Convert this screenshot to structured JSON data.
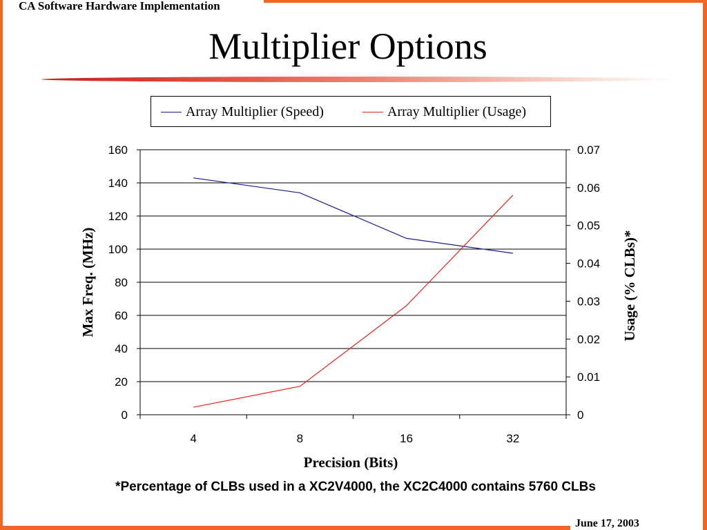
{
  "header": {
    "text": "CA Software Hardware Implementation"
  },
  "slide": {
    "title": "Multiplier Options"
  },
  "footer": {
    "date": "June 17, 2003"
  },
  "footnote": "*Percentage of CLBs used in a XC2V4000, the XC2C4000 contains 5760 CLBs",
  "colors": {
    "frame": "#f26522",
    "speed": "#1a1a8c",
    "usage": "#e8221c"
  },
  "chart_data": {
    "type": "line",
    "categories": [
      "4",
      "8",
      "16",
      "32"
    ],
    "series": [
      {
        "name": "Array Multiplier (Speed)",
        "axis": "left",
        "values": [
          143,
          134,
          106.5,
          97.5
        ]
      },
      {
        "name": "Array Multiplier (Usage)",
        "axis": "right",
        "values": [
          0.002,
          0.0075,
          0.0288,
          0.058
        ]
      }
    ],
    "xlabel": "Precision (Bits)",
    "ylabel": "Max Freq. (MHz)",
    "y2label": "Usage (% CLBs)*",
    "ylim": [
      0,
      160
    ],
    "y2lim": [
      0,
      0.07
    ],
    "yticks": [
      "0",
      "20",
      "40",
      "60",
      "80",
      "100",
      "120",
      "140",
      "160"
    ],
    "y2ticks": [
      "0",
      "0.01",
      "0.02",
      "0.03",
      "0.04",
      "0.05",
      "0.06",
      "0.07"
    ],
    "grid": true,
    "legend": "top"
  }
}
